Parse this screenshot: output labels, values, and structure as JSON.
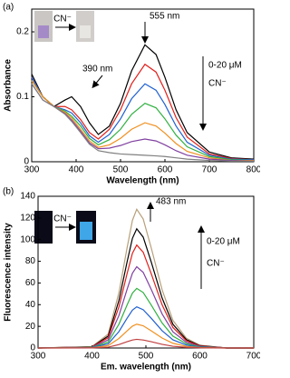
{
  "chart_data": [
    {
      "type": "line",
      "panel_label": "(a)",
      "x_label": "Wavelength (nm)",
      "y_label": "Absorbance",
      "x": [
        300,
        325,
        350,
        375,
        390,
        410,
        430,
        450,
        475,
        500,
        525,
        555,
        580,
        600,
        625,
        650,
        700,
        750,
        800
      ],
      "xlim": [
        300,
        800
      ],
      "xticks": [
        300,
        400,
        500,
        600,
        700,
        800
      ],
      "ylim": [
        0,
        0.235
      ],
      "yticks": [
        0,
        0.1,
        0.2
      ],
      "annotations": [
        "555 nm",
        "390 nm",
        "0-20 μM",
        "CN⁻",
        "CN⁻"
      ],
      "series": [
        {
          "color": "#000000",
          "values": [
            0.135,
            0.1,
            0.085,
            0.095,
            0.1,
            0.085,
            0.06,
            0.042,
            0.055,
            0.09,
            0.14,
            0.18,
            0.165,
            0.13,
            0.08,
            0.045,
            0.015,
            0.006,
            0.004
          ]
        },
        {
          "color": "#e0201b",
          "values": [
            0.13,
            0.1,
            0.085,
            0.085,
            0.08,
            0.065,
            0.045,
            0.035,
            0.05,
            0.08,
            0.12,
            0.15,
            0.138,
            0.11,
            0.068,
            0.038,
            0.012,
            0.005,
            0.003
          ]
        },
        {
          "color": "#2060d0",
          "values": [
            0.13,
            0.1,
            0.085,
            0.08,
            0.075,
            0.06,
            0.04,
            0.03,
            0.042,
            0.066,
            0.097,
            0.12,
            0.11,
            0.088,
            0.055,
            0.03,
            0.01,
            0.004,
            0.003
          ]
        },
        {
          "color": "#30b040",
          "values": [
            0.125,
            0.1,
            0.085,
            0.078,
            0.07,
            0.055,
            0.036,
            0.026,
            0.034,
            0.05,
            0.073,
            0.09,
            0.083,
            0.066,
            0.041,
            0.023,
            0.008,
            0.003,
            0.002
          ]
        },
        {
          "color": "#f09020",
          "values": [
            0.125,
            0.1,
            0.085,
            0.076,
            0.067,
            0.05,
            0.032,
            0.022,
            0.026,
            0.036,
            0.05,
            0.06,
            0.055,
            0.044,
            0.028,
            0.016,
            0.006,
            0.002,
            0.002
          ]
        },
        {
          "color": "#8040a0",
          "values": [
            0.12,
            0.095,
            0.085,
            0.074,
            0.064,
            0.047,
            0.029,
            0.02,
            0.021,
            0.025,
            0.031,
            0.035,
            0.032,
            0.026,
            0.017,
            0.01,
            0.004,
            0.002,
            0.001
          ]
        },
        {
          "color": "#808080",
          "values": [
            0.12,
            0.095,
            0.085,
            0.073,
            0.062,
            0.045,
            0.027,
            0.017,
            0.014,
            0.012,
            0.011,
            0.01,
            0.009,
            0.008,
            0.006,
            0.004,
            0.002,
            0.001,
            0.001
          ]
        }
      ]
    },
    {
      "type": "line",
      "panel_label": "(b)",
      "x_label": "Em. wavelength (nm)",
      "y_label": "Fluorescence intensity",
      "x": [
        300,
        400,
        430,
        450,
        465,
        475,
        483,
        495,
        510,
        530,
        550,
        575,
        600,
        650,
        700
      ],
      "xlim": [
        300,
        700
      ],
      "xticks": [
        300,
        400,
        500,
        600,
        700
      ],
      "ylim": [
        0,
        140
      ],
      "yticks": [
        0,
        20,
        40,
        60,
        80,
        100,
        120,
        140
      ],
      "annotations": [
        "483 nm",
        "0-20 μM",
        "CN⁻",
        "CN⁻"
      ],
      "series": [
        {
          "color": "#b8a07a",
          "values": [
            0,
            1.3,
            12.8,
            51.2,
            92.2,
            117.8,
            128,
            119,
            92.2,
            53.8,
            25.6,
            9,
            2.6,
            0,
            0
          ]
        },
        {
          "color": "#000000",
          "values": [
            0,
            1.1,
            11,
            44,
            79.2,
            101.2,
            110,
            102.3,
            79.2,
            46.2,
            22,
            7.7,
            2.2,
            0,
            0
          ]
        },
        {
          "color": "#e0201b",
          "values": [
            0,
            1,
            9.5,
            38,
            68.4,
            87.4,
            95,
            88.4,
            68.4,
            39.9,
            19,
            6.7,
            1.9,
            0,
            0
          ]
        },
        {
          "color": "#8040a0",
          "values": [
            0,
            0.8,
            7.5,
            30,
            54,
            69,
            75,
            69.8,
            54,
            31.5,
            15,
            5.3,
            1.5,
            0,
            0
          ]
        },
        {
          "color": "#30b040",
          "values": [
            0,
            0.6,
            5.5,
            22,
            39.6,
            50.6,
            55,
            51.2,
            39.6,
            23.1,
            11,
            3.9,
            1.1,
            0,
            0
          ]
        },
        {
          "color": "#2060d0",
          "values": [
            0,
            0.4,
            3.8,
            15.2,
            27.4,
            35,
            38,
            35.3,
            27.4,
            16,
            7.6,
            2.7,
            0.8,
            0,
            0
          ]
        },
        {
          "color": "#f09020",
          "values": [
            0,
            0.2,
            2.2,
            8.8,
            15.8,
            20.2,
            22,
            20.5,
            15.8,
            9.2,
            4.4,
            1.5,
            0.4,
            0,
            0
          ]
        },
        {
          "color": "#c04040",
          "values": [
            0,
            0.1,
            0.8,
            3.2,
            5.8,
            7.4,
            8,
            7.4,
            5.8,
            3.4,
            1.6,
            0.6,
            0.2,
            0,
            0
          ]
        }
      ]
    }
  ]
}
